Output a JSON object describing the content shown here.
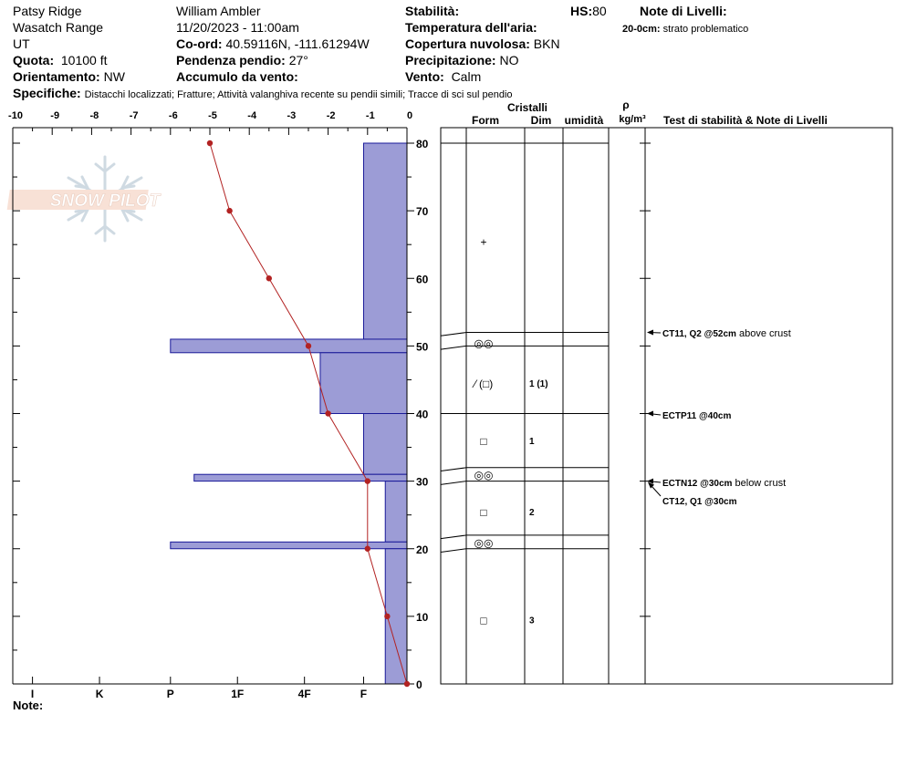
{
  "header": {
    "location": "Patsy Ridge",
    "range": "Wasatch Range",
    "state": "UT",
    "elevation_label": "Quota:",
    "elevation_value": "10100 ft",
    "aspect_label": "Orientamento:",
    "aspect_value": "NW",
    "observer": "William Ambler",
    "datetime": "11/20/2023 - 11:00am",
    "coord_label": "Co-ord:",
    "coord_value": "40.59116N, -111.61294W",
    "slope_label": "Pendenza pendio:",
    "slope_value": "27°",
    "wind_loading_label": "Accumulo da vento:",
    "wind_loading_value": "",
    "stability_label": "Stabilità:",
    "air_temp_label": "Temperatura dell'aria:",
    "cloud_label": "Copertura nuvolosa:",
    "cloud_value": "BKN",
    "precip_label": "Precipitazione:",
    "precip_value": "NO",
    "wind_label": "Vento:",
    "wind_value": "Calm",
    "hs_label": "HS:",
    "hs_value": "80",
    "layer_notes_label": "Note di Livelli:",
    "layer_note_depth": "20-0cm:",
    "layer_note_text": "strato problematico",
    "specifics_label": "Specifiche:",
    "specifics_value": "Distacchi localizzati;  Fratture;  Attività valanghiva recente su pendii simili;  Tracce di sci sul pendio"
  },
  "logo_text": "SNOW PILOT",
  "notes_label": "Note:",
  "table_headers": {
    "crystals": "Cristalli",
    "form": "Form",
    "size": "Dim",
    "moisture": "umidità",
    "rho": "ρ",
    "density_unit": "kg/m³",
    "tests": "Test di stabilità & Note di Livelli"
  },
  "colors": {
    "hardness_fill": "#9c9cd6",
    "hardness_stroke": "#1a1a99",
    "temp_line": "#b22222"
  },
  "chart_data": {
    "type": "snow_profile",
    "temperature_axis": {
      "min": -10,
      "max": 0,
      "ticks": [
        "-10",
        "-9",
        "-8",
        "-7",
        "-6",
        "-5",
        "-4",
        "-3",
        "-2",
        "-1",
        "0"
      ]
    },
    "height_axis": {
      "min": 0,
      "max": 80,
      "unit": "cm",
      "ticks": [
        "0",
        "10",
        "20",
        "30",
        "40",
        "50",
        "60",
        "70",
        "80"
      ]
    },
    "hardness_scale": [
      "I",
      "K",
      "P",
      "1F",
      "4F",
      "F"
    ],
    "temperature_profile": [
      {
        "height": 80,
        "temp": -5.0
      },
      {
        "height": 70,
        "temp": -4.5
      },
      {
        "height": 60,
        "temp": -3.5
      },
      {
        "height": 50,
        "temp": -2.5
      },
      {
        "height": 40,
        "temp": -2.0
      },
      {
        "height": 30,
        "temp": -1.0
      },
      {
        "height": 20,
        "temp": -1.0
      },
      {
        "height": 10,
        "temp": -0.5
      },
      {
        "height": 0,
        "temp": 0.0
      }
    ],
    "hardness_layers": [
      {
        "top": 80,
        "bottom": 51,
        "hardness_temp_units": -1.1
      },
      {
        "top": 51,
        "bottom": 49,
        "hardness_temp_units": -6.0
      },
      {
        "top": 49,
        "bottom": 40,
        "hardness_temp_units": -2.2
      },
      {
        "top": 40,
        "bottom": 31,
        "hardness_temp_units": -1.1
      },
      {
        "top": 31,
        "bottom": 30,
        "hardness_temp_units": -5.4
      },
      {
        "top": 30,
        "bottom": 21,
        "hardness_temp_units": -0.55
      },
      {
        "top": 21,
        "bottom": 20,
        "hardness_temp_units": -6.0
      },
      {
        "top": 20,
        "bottom": 0,
        "hardness_temp_units": -0.55
      }
    ],
    "layer_boundaries": [
      80,
      52,
      50,
      40,
      32,
      30,
      22,
      20
    ],
    "crystals": [
      {
        "height": 65.5,
        "form": "+",
        "size": ""
      },
      {
        "height": 50.5,
        "form": "◎◎",
        "size": ""
      },
      {
        "height": 44.5,
        "form": "⁄ (□)",
        "size": "1 (1)"
      },
      {
        "height": 36,
        "form": "□",
        "size": "1"
      },
      {
        "height": 31,
        "form": "◎◎",
        "size": ""
      },
      {
        "height": 25.5,
        "form": "□",
        "size": "2"
      },
      {
        "height": 21,
        "form": "◎◎",
        "size": ""
      },
      {
        "height": 9.5,
        "form": "□",
        "size": "3"
      }
    ],
    "stability_tests": [
      {
        "height": 52,
        "code": "CT11, Q2 @52cm",
        "note": "above crust"
      },
      {
        "height": 40,
        "code": "ECTP11 @40cm",
        "note": ""
      },
      {
        "height": 30,
        "code": "ECTN12 @30cm",
        "note": "below crust"
      },
      {
        "height": 30,
        "code": "CT12, Q1 @30cm",
        "note": ""
      }
    ]
  }
}
